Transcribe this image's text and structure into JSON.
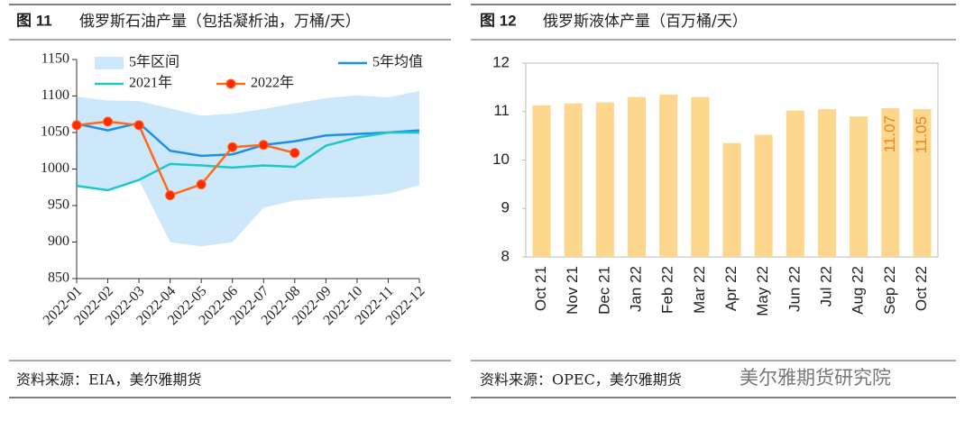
{
  "chart_data": [
    {
      "type": "line",
      "figure": "图 11",
      "title": "俄罗斯石油产量（包括凝析油，万桶/天）",
      "source": "资料来源：EIA，美尔雅期货",
      "categories": [
        "2022-01",
        "2022-02",
        "2022-03",
        "2022-04",
        "2022-05",
        "2022-06",
        "2022-07",
        "2022-08",
        "2022-09",
        "2022-10",
        "2022-11",
        "2022-12"
      ],
      "ylim": [
        850,
        1150
      ],
      "yticks": [
        850,
        900,
        950,
        1000,
        1050,
        1100,
        1150
      ],
      "series": [
        {
          "name": "5年区间",
          "kind": "band",
          "color": "#cce8fa",
          "high": [
            1099,
            1094,
            1093,
            1083,
            1073,
            1076,
            1082,
            1090,
            1097,
            1101,
            1098,
            1107
          ],
          "low": [
            975,
            970,
            985,
            900,
            894,
            900,
            947,
            957,
            960,
            962,
            966,
            978
          ]
        },
        {
          "name": "5年均值",
          "color": "#1e8fe6",
          "values": [
            1062,
            1053,
            1063,
            1025,
            1018,
            1020,
            1033,
            1038,
            1046,
            1048,
            1050,
            1053
          ]
        },
        {
          "name": "2021年",
          "color": "#1ec8c8",
          "values": [
            977,
            971,
            985,
            1007,
            1005,
            1002,
            1005,
            1003,
            1032,
            1043,
            1050,
            1050
          ]
        },
        {
          "name": "2022年",
          "color": "#ff6a1a",
          "marker": true,
          "values": [
            1060,
            1065,
            1060,
            964,
            979,
            1030,
            1033,
            1022,
            null,
            null,
            null,
            null
          ]
        }
      ]
    },
    {
      "type": "bar",
      "figure": "图 12",
      "title": "俄罗斯液体产量（百万桶/天）",
      "source": "资料来源：OPEC，美尔雅期货",
      "categories": [
        "Oct 21",
        "Nov 21",
        "Dec 21",
        "Jan 22",
        "Feb 22",
        "Mar 22",
        "Apr 22",
        "May 22",
        "Jun 22",
        "Jul 22",
        "Aug 22",
        "Sep 22",
        "Oct 22"
      ],
      "values": [
        11.13,
        11.17,
        11.19,
        11.3,
        11.35,
        11.3,
        10.35,
        10.52,
        11.02,
        11.05,
        10.9,
        11.07,
        11.05
      ],
      "value_labels": [
        null,
        null,
        null,
        null,
        null,
        null,
        null,
        null,
        null,
        null,
        null,
        "11.07",
        "11.05"
      ],
      "color": "#fdd78e",
      "label_color": "#e8851c",
      "ylim": [
        8,
        12
      ],
      "yticks": [
        8,
        9,
        10,
        11,
        12
      ]
    }
  ],
  "watermark": "美尔雅期货研究院"
}
